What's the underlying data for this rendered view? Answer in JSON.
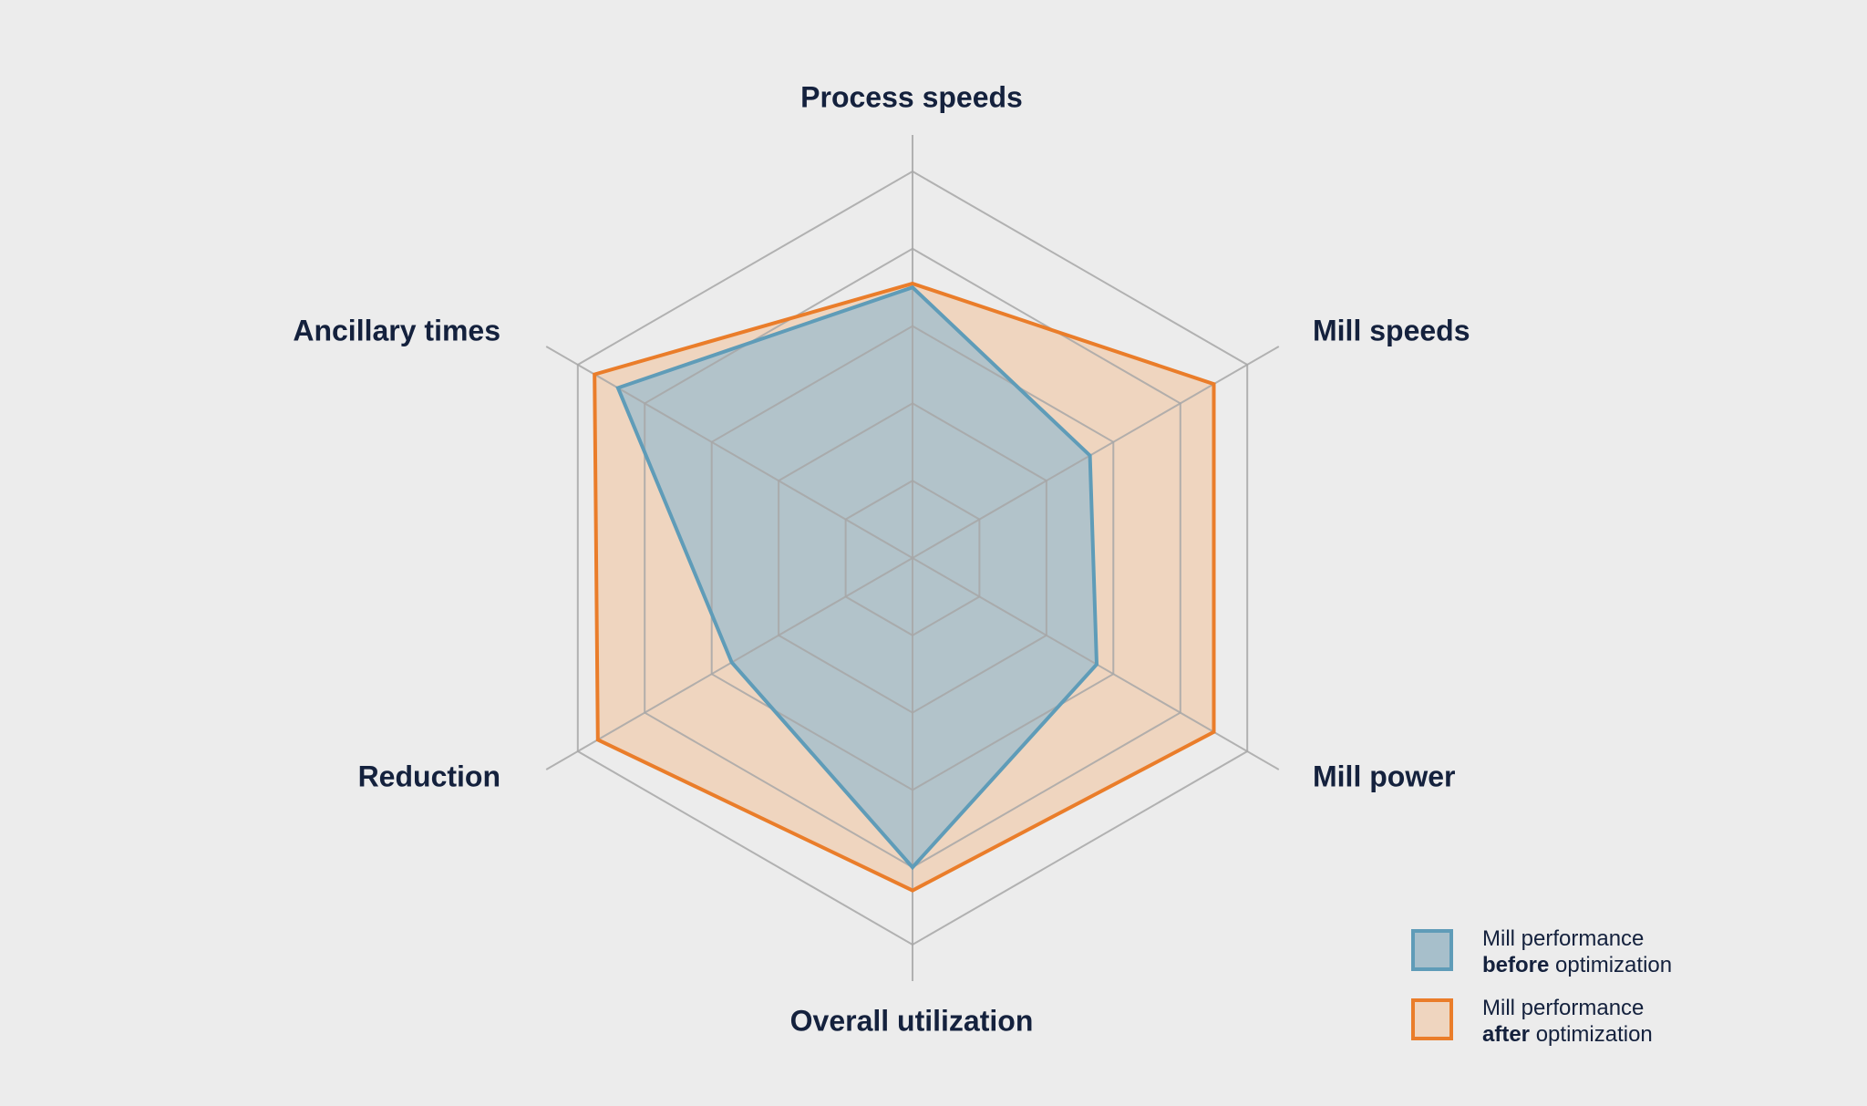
{
  "chart_data": {
    "type": "radar",
    "axes": [
      "Process speeds",
      "Mill speeds",
      "Mill power",
      "Overall utilization",
      "Reduction",
      "Ancillary times"
    ],
    "range": [
      0,
      1
    ],
    "rings": [
      0.2,
      0.4,
      0.6,
      0.8,
      1.0
    ],
    "grid": true,
    "legend_position": "bottom-right",
    "series": [
      {
        "key": "before",
        "values": [
          0.7,
          0.53,
          0.55,
          0.8,
          0.54,
          0.88
        ],
        "stroke": "#5f9cb8",
        "fill": "#a7bfcb",
        "fill_opacity": 0.85,
        "legend": {
          "line1": "Mill performance",
          "bold": "before",
          "rest": " optimization"
        }
      },
      {
        "key": "after",
        "values": [
          0.71,
          0.9,
          0.9,
          0.86,
          0.94,
          0.95
        ],
        "stroke": "#ea7d2a",
        "fill": "#efd5bf",
        "fill_opacity": 1,
        "legend": {
          "line1": "Mill performance",
          "bold": "after",
          "rest": " optimization"
        }
      }
    ]
  },
  "colors": {
    "background": "#ececec",
    "grid": "#a7a7a7",
    "text": "#14213d"
  }
}
